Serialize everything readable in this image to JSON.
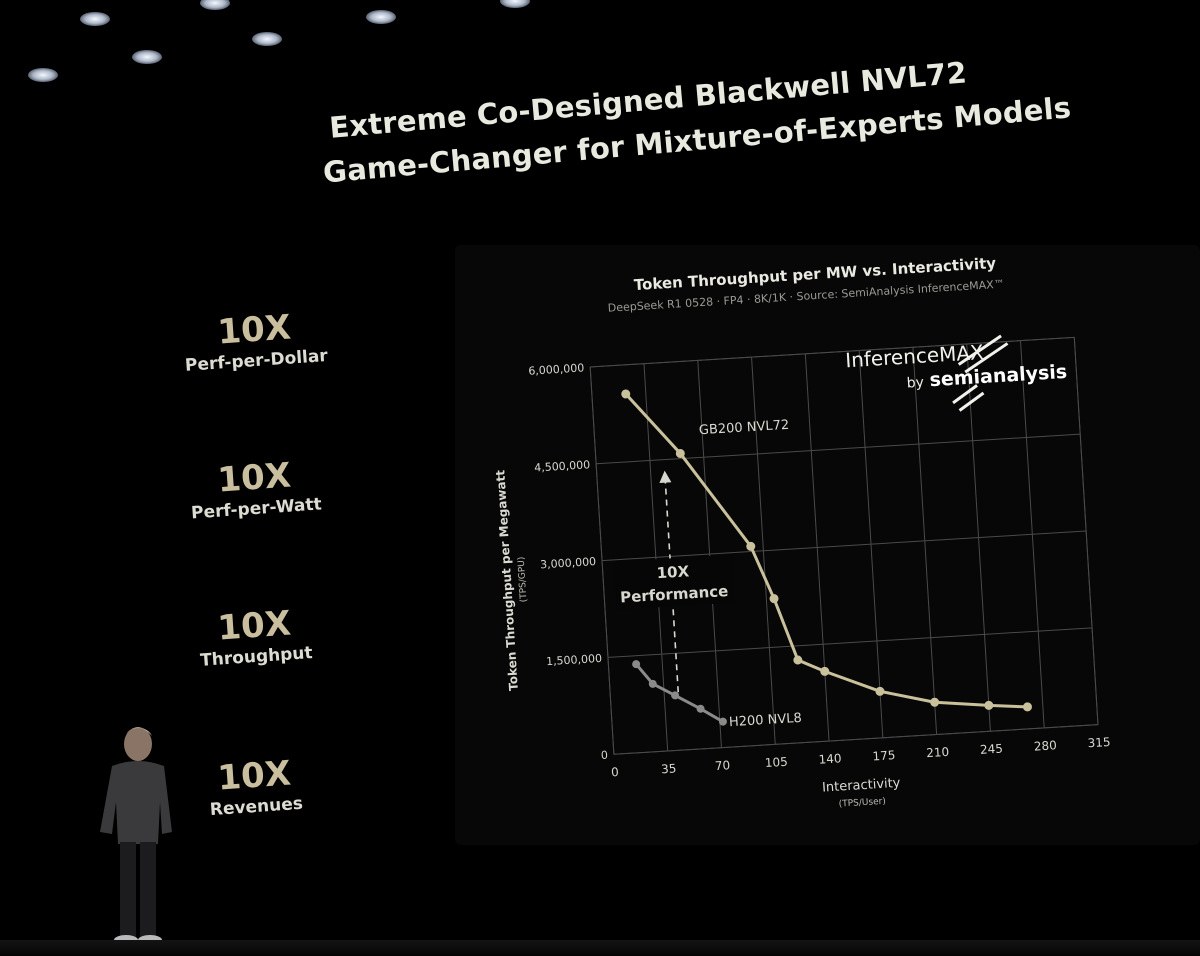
{
  "slide": {
    "title_line1": "Extreme Co-Designed Blackwell NVL72",
    "title_line2": "Game-Changer for Mixture-of-Experts Models"
  },
  "stats": [
    {
      "value": "10X",
      "label": "Perf-per-Dollar"
    },
    {
      "value": "10X",
      "label": "Perf-per-Watt"
    },
    {
      "value": "10X",
      "label": "Throughput"
    },
    {
      "value": "10X",
      "label": "Revenues"
    }
  ],
  "logo": {
    "line1": "InferenceMAX",
    "by": "by",
    "brand": "semianalysis"
  },
  "annotation": {
    "line1": "10X",
    "line2": "Performance"
  },
  "colors": {
    "gb200": "#c9c19c",
    "h200": "#8a8a8a",
    "grid": "#4a4a4a",
    "text": "#d8d8d0",
    "accent": "#c9bf9e"
  },
  "chart_data": {
    "type": "line",
    "title": "Token Throughput per MW vs. Interactivity",
    "subtitle": "DeepSeek R1 0528 · FP4 · 8K/1K · Source: SemiAnalysis InferenceMAX™",
    "xlabel": "Interactivity",
    "xlabel_unit": "(TPS/User)",
    "ylabel": "Token Throughput per Megawatt",
    "ylabel_unit": "(TPS/GPU)",
    "xlim": [
      0,
      315
    ],
    "ylim": [
      0,
      6000000
    ],
    "x_ticks": [
      0,
      35,
      70,
      105,
      140,
      175,
      210,
      245,
      280,
      315
    ],
    "y_ticks": [
      0,
      1500000,
      3000000,
      4500000,
      6000000
    ],
    "y_tick_labels": [
      "0",
      "1,500,000",
      "3,000,000",
      "4,500,000",
      "6,000,000"
    ],
    "grid": true,
    "series": [
      {
        "name": "GB200 NVL72",
        "x": [
          22,
          55,
          97,
          110,
          123,
          140,
          175,
          210,
          245,
          270
        ],
        "y": [
          5550000,
          4580000,
          3080000,
          2250000,
          1280000,
          1080000,
          720000,
          500000,
          400000,
          340000
        ]
      },
      {
        "name": "H200 NVL8",
        "x": [
          18,
          28,
          42,
          58,
          72
        ],
        "y": [
          1370000,
          1050000,
          850000,
          620000,
          400000
        ]
      }
    ]
  }
}
